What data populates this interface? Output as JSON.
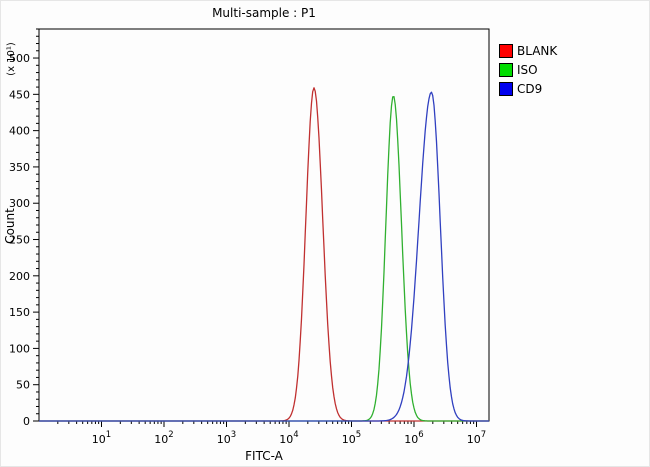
{
  "chart_data": {
    "type": "line",
    "title": "Multi-sample : P1",
    "xlabel": "FITC-A",
    "ylabel": "Count",
    "y_unit_label": "(x 10¹)",
    "x_scale": "log",
    "x_log_range": [
      0,
      7.2
    ],
    "x_tick_exponents": [
      1,
      2,
      3,
      4,
      5,
      6,
      7
    ],
    "y_range": [
      0,
      540
    ],
    "y_ticks": [
      0,
      50,
      100,
      150,
      200,
      250,
      300,
      350,
      400,
      450,
      500
    ],
    "y_minor_step": 10,
    "grid": false,
    "legend_position": "top-right",
    "series": [
      {
        "name": "BLANK",
        "swatch_color": "#ff0000",
        "line_color": "#c03030",
        "peak_x": 25000,
        "peak_log_center": 4.4,
        "peak_height": 459,
        "sigma_left": 0.13,
        "sigma_right": 0.14
      },
      {
        "name": "ISO",
        "swatch_color": "#00dd00",
        "line_color": "#30b030",
        "peak_x": 470000,
        "peak_log_center": 5.67,
        "peak_height": 448,
        "sigma_left": 0.12,
        "sigma_right": 0.13
      },
      {
        "name": "CD9",
        "swatch_color": "#0000ee",
        "line_color": "#3040c0",
        "peak_x": 1900000,
        "peak_log_center": 6.28,
        "peak_height": 453,
        "sigma_left": 0.2,
        "sigma_right": 0.14
      }
    ]
  }
}
